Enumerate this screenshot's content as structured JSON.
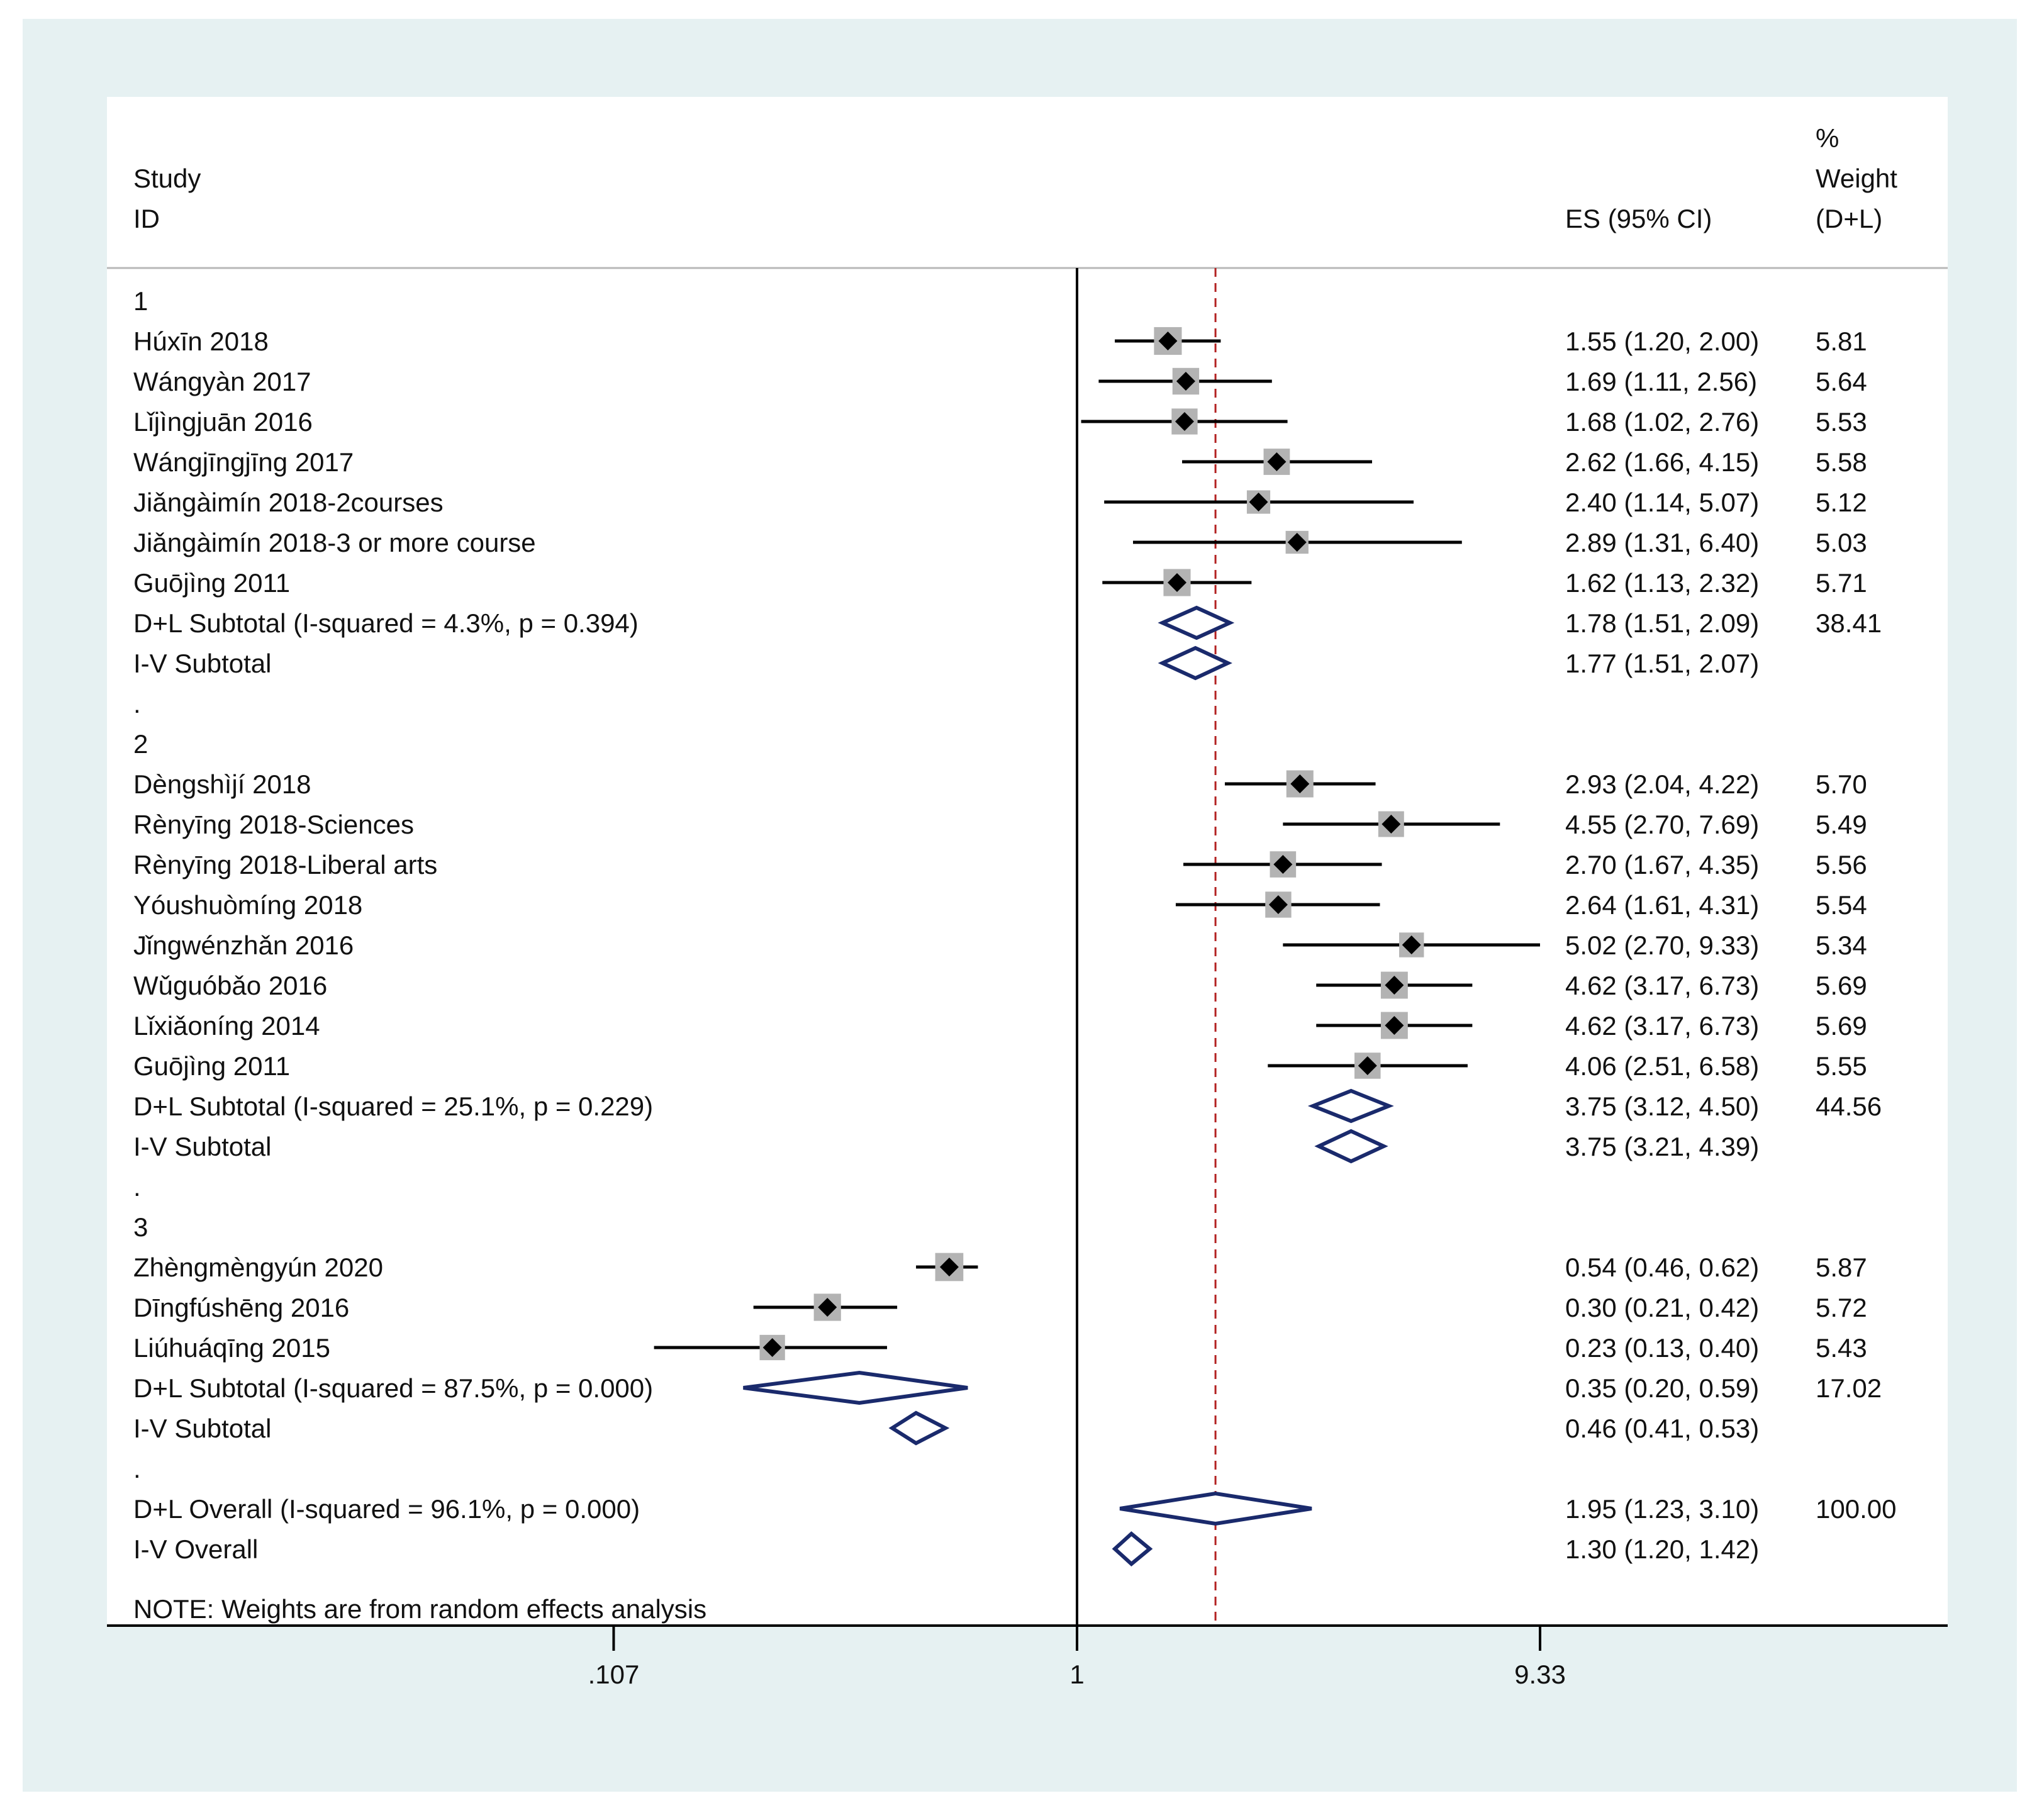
{
  "colors": {
    "outer_background": "#e6f1f2",
    "plot_background": "#ffffff",
    "marker": "#000000",
    "weight_box": "#b3b3b3",
    "diamond": "#1a2a6c",
    "reference_line": "#b22222"
  },
  "chart_data": {
    "type": "forest",
    "scale": "log",
    "null_value": 1,
    "overall_reference": 1.95,
    "xlim": [
      0.107,
      9.33
    ],
    "xticks": [
      {
        "value": 0.107,
        "label": ".107"
      },
      {
        "value": 1,
        "label": "1"
      },
      {
        "value": 9.33,
        "label": "9.33"
      }
    ],
    "header": {
      "study_line1": "Study",
      "study_line2": "ID",
      "es_label": "ES (95% CI)",
      "weight_line1": "%",
      "weight_line2": "Weight",
      "weight_line3": "(D+L)"
    },
    "rows": [
      {
        "kind": "group",
        "label": "1"
      },
      {
        "kind": "study",
        "label": "Húxīn 2018",
        "es": 1.55,
        "lo": 1.2,
        "hi": 2.0,
        "ci_text": "1.55 (1.20, 2.00)",
        "weight": "5.81"
      },
      {
        "kind": "study",
        "label": "Wángyàn 2017",
        "es": 1.69,
        "lo": 1.11,
        "hi": 2.56,
        "ci_text": "1.69 (1.11, 2.56)",
        "weight": "5.64"
      },
      {
        "kind": "study",
        "label": "Lǐjìngjuān 2016",
        "es": 1.68,
        "lo": 1.02,
        "hi": 2.76,
        "ci_text": "1.68 (1.02, 2.76)",
        "weight": "5.53"
      },
      {
        "kind": "study",
        "label": "Wángjīngjīng 2017",
        "es": 2.62,
        "lo": 1.66,
        "hi": 4.15,
        "ci_text": "2.62 (1.66, 4.15)",
        "weight": "5.58"
      },
      {
        "kind": "study",
        "label": "Jiǎngàimín 2018-2courses",
        "es": 2.4,
        "lo": 1.14,
        "hi": 5.07,
        "ci_text": "2.40 (1.14, 5.07)",
        "weight": "5.12"
      },
      {
        "kind": "study",
        "label": "Jiǎngàimín 2018-3 or more course",
        "es": 2.89,
        "lo": 1.31,
        "hi": 6.4,
        "ci_text": "2.89 (1.31, 6.40)",
        "weight": "5.03"
      },
      {
        "kind": "study",
        "label": "Guōjìng 2011",
        "es": 1.62,
        "lo": 1.13,
        "hi": 2.32,
        "ci_text": "1.62 (1.13, 2.32)",
        "weight": "5.71"
      },
      {
        "kind": "pooled",
        "label": "D+L Subtotal  (I-squared = 4.3%, p = 0.394)",
        "es": 1.78,
        "lo": 1.51,
        "hi": 2.09,
        "ci_text": "1.78 (1.51, 2.09)",
        "weight": "38.41"
      },
      {
        "kind": "pooled",
        "label": "I-V Subtotal",
        "es": 1.77,
        "lo": 1.51,
        "hi": 2.07,
        "ci_text": "1.77 (1.51, 2.07)",
        "weight": ""
      },
      {
        "kind": "spacer",
        "label": "."
      },
      {
        "kind": "group",
        "label": "2"
      },
      {
        "kind": "study",
        "label": "Dèngshìjí 2018",
        "es": 2.93,
        "lo": 2.04,
        "hi": 4.22,
        "ci_text": "2.93 (2.04, 4.22)",
        "weight": "5.70"
      },
      {
        "kind": "study",
        "label": "Rènyīng 2018-Sciences",
        "es": 4.55,
        "lo": 2.7,
        "hi": 7.69,
        "ci_text": "4.55 (2.70, 7.69)",
        "weight": "5.49"
      },
      {
        "kind": "study",
        "label": "Rènyīng 2018-Liberal arts",
        "es": 2.7,
        "lo": 1.67,
        "hi": 4.35,
        "ci_text": "2.70 (1.67, 4.35)",
        "weight": "5.56"
      },
      {
        "kind": "study",
        "label": "Yóushuòmíng 2018",
        "es": 2.64,
        "lo": 1.61,
        "hi": 4.31,
        "ci_text": "2.64 (1.61, 4.31)",
        "weight": "5.54"
      },
      {
        "kind": "study",
        "label": "Jǐngwénzhǎn 2016",
        "es": 5.02,
        "lo": 2.7,
        "hi": 9.33,
        "ci_text": "5.02 (2.70, 9.33)",
        "weight": "5.34"
      },
      {
        "kind": "study",
        "label": "Wǔguóbǎo 2016",
        "es": 4.62,
        "lo": 3.17,
        "hi": 6.73,
        "ci_text": "4.62 (3.17, 6.73)",
        "weight": "5.69"
      },
      {
        "kind": "study",
        "label": "Lǐxiǎoníng 2014",
        "es": 4.62,
        "lo": 3.17,
        "hi": 6.73,
        "ci_text": "4.62 (3.17, 6.73)",
        "weight": "5.69"
      },
      {
        "kind": "study",
        "label": "Guōjìng 2011",
        "es": 4.06,
        "lo": 2.51,
        "hi": 6.58,
        "ci_text": "4.06 (2.51, 6.58)",
        "weight": "5.55"
      },
      {
        "kind": "pooled",
        "label": "D+L Subtotal  (I-squared = 25.1%, p = 0.229)",
        "es": 3.75,
        "lo": 3.12,
        "hi": 4.5,
        "ci_text": "3.75 (3.12, 4.50)",
        "weight": "44.56"
      },
      {
        "kind": "pooled",
        "label": "I-V Subtotal",
        "es": 3.75,
        "lo": 3.21,
        "hi": 4.39,
        "ci_text": "3.75 (3.21, 4.39)",
        "weight": ""
      },
      {
        "kind": "spacer",
        "label": "."
      },
      {
        "kind": "group",
        "label": "3"
      },
      {
        "kind": "study",
        "label": "Zhèngmèngyún 2020",
        "es": 0.54,
        "lo": 0.46,
        "hi": 0.62,
        "ci_text": "0.54 (0.46, 0.62)",
        "weight": "5.87"
      },
      {
        "kind": "study",
        "label": "Dīngfúshēng 2016",
        "es": 0.3,
        "lo": 0.21,
        "hi": 0.42,
        "ci_text": "0.30 (0.21, 0.42)",
        "weight": "5.72"
      },
      {
        "kind": "study",
        "label": "Liúhuáqīng 2015",
        "es": 0.23,
        "lo": 0.13,
        "hi": 0.4,
        "ci_text": "0.23 (0.13, 0.40)",
        "weight": "5.43"
      },
      {
        "kind": "pooled",
        "label": "D+L Subtotal  (I-squared = 87.5%, p = 0.000)",
        "es": 0.35,
        "lo": 0.2,
        "hi": 0.59,
        "ci_text": "0.35 (0.20, 0.59)",
        "weight": "17.02"
      },
      {
        "kind": "pooled",
        "label": "I-V Subtotal",
        "es": 0.46,
        "lo": 0.41,
        "hi": 0.53,
        "ci_text": "0.46 (0.41, 0.53)",
        "weight": ""
      },
      {
        "kind": "spacer",
        "label": "."
      },
      {
        "kind": "pooled",
        "label": "D+L Overall  (I-squared = 96.1%, p = 0.000)",
        "es": 1.95,
        "lo": 1.23,
        "hi": 3.1,
        "ci_text": "1.95 (1.23, 3.10)",
        "weight": "100.00"
      },
      {
        "kind": "pooled",
        "label": "I-V Overall",
        "es": 1.3,
        "lo": 1.2,
        "hi": 1.42,
        "ci_text": "1.30 (1.20, 1.42)",
        "weight": ""
      }
    ],
    "note": "NOTE: Weights are from random effects analysis"
  }
}
